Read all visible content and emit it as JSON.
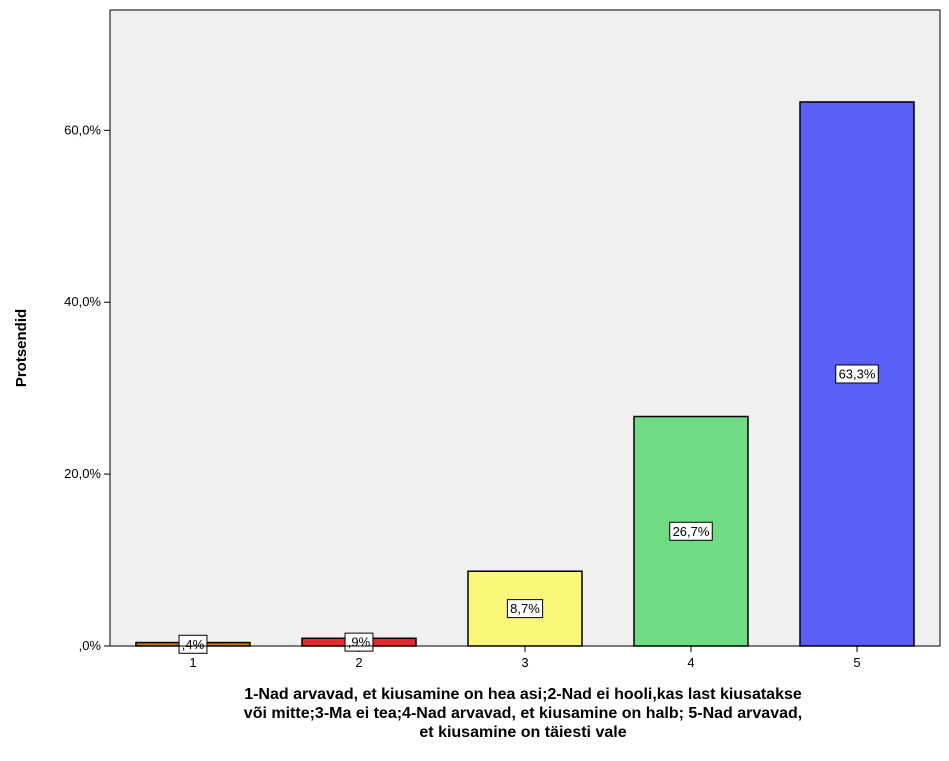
{
  "chart_data": {
    "type": "bar",
    "categories": [
      "1",
      "2",
      "3",
      "4",
      "5"
    ],
    "values": [
      0.4,
      0.9,
      8.7,
      26.7,
      63.3
    ],
    "data_labels": [
      ",4%",
      ",9%",
      "8,7%",
      "26,7%",
      "63,3%"
    ],
    "colors": [
      "#cc7700",
      "#e8262f",
      "#f9f77a",
      "#6fdc84",
      "#5b5ff7"
    ],
    "ylabel": "Protsendid",
    "xlabel_lines": [
      "1-Nad arvavad, et kiusamine on hea asi;2-Nad ei hooli,kas last kiusatakse",
      "või mitte;3-Ma ei tea;4-Nad arvavad, et kiusamine on halb; 5-Nad arvavad,",
      "et kiusamine on täiesti vale"
    ],
    "yticks": [
      0,
      20,
      40,
      60
    ],
    "ytick_labels": [
      ",0%",
      "20,0%",
      "40,0%",
      "60,0%"
    ],
    "ylim": [
      0,
      74
    ],
    "grid": false,
    "plot_background": "#f0f0f0"
  }
}
